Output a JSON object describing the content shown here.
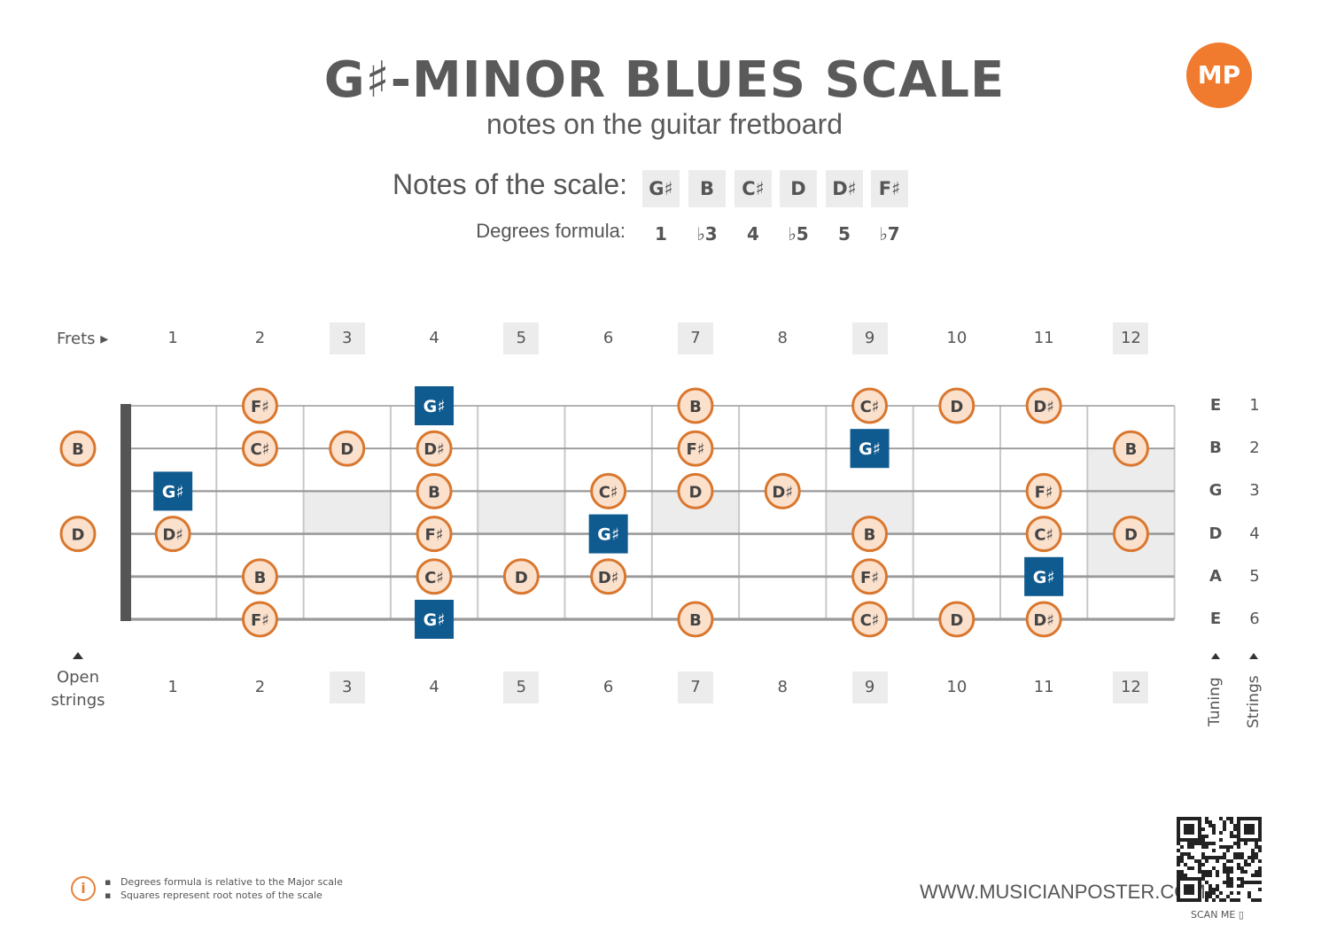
{
  "header": {
    "title": "G♯-MINOR BLUES SCALE",
    "subtitle": "notes on the guitar fretboard",
    "logo_text": "MP"
  },
  "scale": {
    "notes_label": "Notes of the scale:",
    "degrees_label": "Degrees formula:",
    "notes": [
      "G♯",
      "B",
      "C♯",
      "D",
      "D♯",
      "F♯"
    ],
    "degrees": [
      "1",
      "♭3",
      "4",
      "♭5",
      "5",
      "♭7"
    ]
  },
  "fretboard": {
    "frets_label": "Frets ▸",
    "open_label_1": "Open",
    "open_label_2": "strings",
    "fret_numbers": [
      "1",
      "2",
      "3",
      "4",
      "5",
      "6",
      "7",
      "8",
      "9",
      "10",
      "11",
      "12"
    ],
    "marker_frets": [
      3,
      5,
      7,
      9,
      12
    ],
    "tuning": [
      "E",
      "B",
      "G",
      "D",
      "A",
      "E"
    ],
    "string_numbers": [
      "1",
      "2",
      "3",
      "4",
      "5",
      "6"
    ],
    "tuning_axis_label": "Tuning",
    "strings_axis_label": "Strings",
    "open_notes": [
      {
        "string": 2,
        "note": "B"
      },
      {
        "string": 4,
        "note": "D"
      }
    ],
    "notes": [
      {
        "string": 1,
        "fret": 2,
        "note": "F♯",
        "root": false
      },
      {
        "string": 1,
        "fret": 4,
        "note": "G♯",
        "root": true
      },
      {
        "string": 1,
        "fret": 7,
        "note": "B",
        "root": false
      },
      {
        "string": 1,
        "fret": 9,
        "note": "C♯",
        "root": false
      },
      {
        "string": 1,
        "fret": 10,
        "note": "D",
        "root": false
      },
      {
        "string": 1,
        "fret": 11,
        "note": "D♯",
        "root": false
      },
      {
        "string": 2,
        "fret": 2,
        "note": "C♯",
        "root": false
      },
      {
        "string": 2,
        "fret": 3,
        "note": "D",
        "root": false
      },
      {
        "string": 2,
        "fret": 4,
        "note": "D♯",
        "root": false
      },
      {
        "string": 2,
        "fret": 7,
        "note": "F♯",
        "root": false
      },
      {
        "string": 2,
        "fret": 9,
        "note": "G♯",
        "root": true
      },
      {
        "string": 2,
        "fret": 12,
        "note": "B",
        "root": false
      },
      {
        "string": 3,
        "fret": 1,
        "note": "G♯",
        "root": true
      },
      {
        "string": 3,
        "fret": 4,
        "note": "B",
        "root": false
      },
      {
        "string": 3,
        "fret": 6,
        "note": "C♯",
        "root": false
      },
      {
        "string": 3,
        "fret": 7,
        "note": "D",
        "root": false
      },
      {
        "string": 3,
        "fret": 8,
        "note": "D♯",
        "root": false
      },
      {
        "string": 3,
        "fret": 11,
        "note": "F♯",
        "root": false
      },
      {
        "string": 4,
        "fret": 1,
        "note": "D♯",
        "root": false
      },
      {
        "string": 4,
        "fret": 4,
        "note": "F♯",
        "root": false
      },
      {
        "string": 4,
        "fret": 6,
        "note": "G♯",
        "root": true
      },
      {
        "string": 4,
        "fret": 9,
        "note": "B",
        "root": false
      },
      {
        "string": 4,
        "fret": 11,
        "note": "C♯",
        "root": false
      },
      {
        "string": 4,
        "fret": 12,
        "note": "D",
        "root": false
      },
      {
        "string": 5,
        "fret": 2,
        "note": "B",
        "root": false
      },
      {
        "string": 5,
        "fret": 4,
        "note": "C♯",
        "root": false
      },
      {
        "string": 5,
        "fret": 5,
        "note": "D",
        "root": false
      },
      {
        "string": 5,
        "fret": 6,
        "note": "D♯",
        "root": false
      },
      {
        "string": 5,
        "fret": 9,
        "note": "F♯",
        "root": false
      },
      {
        "string": 5,
        "fret": 11,
        "note": "G♯",
        "root": true
      },
      {
        "string": 6,
        "fret": 2,
        "note": "F♯",
        "root": false
      },
      {
        "string": 6,
        "fret": 4,
        "note": "G♯",
        "root": true
      },
      {
        "string": 6,
        "fret": 7,
        "note": "B",
        "root": false
      },
      {
        "string": 6,
        "fret": 9,
        "note": "C♯",
        "root": false
      },
      {
        "string": 6,
        "fret": 10,
        "note": "D",
        "root": false
      },
      {
        "string": 6,
        "fret": 11,
        "note": "D♯",
        "root": false
      }
    ]
  },
  "colors": {
    "note_fill": "#fbe0cc",
    "note_border": "#d9772e",
    "root_fill": "#0f5a8e",
    "marker_fill": "#ececec",
    "nut": "#555555",
    "strings": "#9a9a9a",
    "frets": "#c8c8c8"
  },
  "footer": {
    "note_1": "Degrees formula is relative to the Major scale",
    "note_2": "Squares represent root notes of the scale",
    "info_icon": "info-icon",
    "website": "WWW.MUSICIANPOSTER.COM",
    "scan_me": "SCAN ME"
  }
}
